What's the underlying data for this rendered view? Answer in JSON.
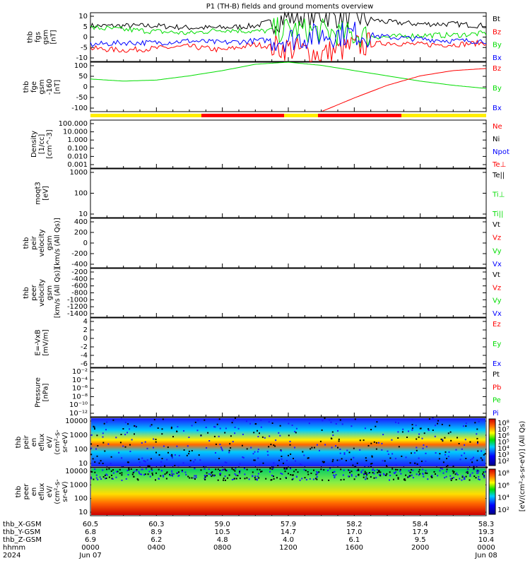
{
  "title": "P1 (TH-B) fields and ground moments overview",
  "colors": {
    "black": "#000000",
    "red": "#ff0000",
    "green": "#00dd00",
    "blue": "#0000ff",
    "yellow": "#ffee00"
  },
  "chart_data": [
    {
      "type": "line",
      "panel": "fgs-gsm",
      "ylabel": [
        "thb",
        "fgs",
        "gsm",
        "[nT]"
      ],
      "ylim": [
        -12,
        14
      ],
      "yticks": [
        "10",
        "5",
        "0",
        "-5",
        "-10"
      ],
      "legend": [
        "Bt",
        "Bz",
        "By",
        "Bx"
      ],
      "series": [
        {
          "name": "Bt",
          "values": [
            7,
            7,
            7,
            6,
            6,
            7,
            12,
            13,
            12,
            9,
            8,
            8,
            7
          ]
        },
        {
          "name": "Bz",
          "values": [
            -5,
            -6,
            -5,
            -4,
            -6,
            -3,
            -5,
            -8,
            -4,
            -2,
            -3,
            -3,
            -2
          ]
        },
        {
          "name": "By",
          "values": [
            6,
            5,
            4,
            3,
            5,
            4,
            5,
            4,
            2,
            1,
            2,
            2,
            3
          ]
        },
        {
          "name": "Bx",
          "values": [
            -3,
            -2,
            -2,
            -1,
            -2,
            -1,
            0,
            2,
            3,
            1,
            0,
            -1,
            -1
          ]
        }
      ]
    },
    {
      "type": "line",
      "panel": "fge-gsm-160",
      "ylabel": [
        "thb",
        "fge",
        "gsm",
        "-160",
        "[nT]"
      ],
      "ylim": [
        -125,
        110
      ],
      "yticks": [
        "100",
        "50",
        "0",
        "-50",
        "-100"
      ],
      "legend": [
        "Bz",
        "By",
        "Bx"
      ],
      "series": [
        {
          "name": "By",
          "values": [
            30,
            20,
            25,
            45,
            70,
            100,
            110,
            95,
            70,
            45,
            20,
            0,
            -15
          ]
        },
        {
          "name": "Bz",
          "values": [
            null,
            null,
            null,
            null,
            null,
            null,
            null,
            -125,
            -60,
            0,
            45,
            70,
            80
          ]
        }
      ]
    },
    {
      "type": "line",
      "panel": "density",
      "ylabel": [
        "Density",
        "[1/cc]",
        "[cm^-3]"
      ],
      "yticks": [
        "100.000",
        "10.000",
        "1.000",
        "0.100",
        "0.010",
        "0.001"
      ],
      "legend": [
        "Ne",
        "Ni",
        "Npot",
        "Te⊥"
      ]
    },
    {
      "type": "line",
      "panel": "temperature",
      "ylabel": [
        "moqt3",
        "[eV]"
      ],
      "yticks": [
        "1000",
        "100",
        "10"
      ],
      "legend": [
        "Te||",
        "Ti⊥",
        "Ti||"
      ]
    },
    {
      "type": "line",
      "panel": "peir-velocity",
      "ylabel": [
        "thb",
        "peir",
        "velocity",
        "gsm",
        "[km/s (All Qs)]"
      ],
      "ylim": [
        -460,
        460
      ],
      "yticks": [
        "400",
        "200",
        "0",
        "-200",
        "-400"
      ],
      "legend": [
        "Vt",
        "Vz",
        "Vy",
        "Vx"
      ]
    },
    {
      "type": "line",
      "panel": "peer-velocity",
      "ylabel": [
        "thb",
        "peer",
        "velocity",
        "gsm",
        "[km/s (All Qs)]"
      ],
      "ylim": [
        -1400,
        0
      ],
      "yticks": [
        "-200",
        "-400",
        "-600",
        "-800",
        "-1000",
        "-1200",
        "-1400"
      ],
      "legend": [
        "Vt",
        "Vz",
        "Vy",
        "Vx"
      ]
    },
    {
      "type": "line",
      "panel": "efield",
      "ylabel": [
        "E=-VxB",
        "[mV/m]"
      ],
      "ylim": [
        -6.5,
        5
      ],
      "yticks": [
        "4",
        "2",
        "0",
        "-2",
        "-4",
        "-6"
      ],
      "legend": [
        "Ez",
        "Ey",
        "Ex"
      ]
    },
    {
      "type": "line",
      "panel": "pressure",
      "ylabel": [
        "Pressure",
        "[nPa]"
      ],
      "yticks": [
        "10⁻²",
        "10⁻⁴",
        "10⁻⁶",
        "10⁻⁸",
        "10⁻¹⁰",
        "10⁻¹²"
      ],
      "legend": [
        "Pt",
        "Pb",
        "Pe",
        "Pi"
      ]
    },
    {
      "type": "heatmap",
      "panel": "peir-en-eflux",
      "ylabel": [
        "thb",
        "peir",
        "en",
        "eflux",
        "eV/",
        "(cm²-s-",
        "sr-eV)"
      ],
      "yticks": [
        "10000",
        "1000",
        "100",
        "10"
      ],
      "colorbar_ticks": [
        "10⁸",
        "10⁷",
        "10⁶",
        "10⁵",
        "10⁴",
        "10³",
        "10²"
      ]
    },
    {
      "type": "heatmap",
      "panel": "peer-en-eflux",
      "ylabel": [
        "thb",
        "peer",
        "en",
        "eflux",
        "eV/",
        "(cm²-s-",
        "sr-eV)"
      ],
      "yticks": [
        "10000",
        "1000",
        "100",
        "10"
      ],
      "colorbar_ticks": [
        "10⁸",
        "10⁶",
        "10⁴",
        "10²"
      ]
    }
  ],
  "colorbar_label": "[eV/(cm²-s-sr-eV)] (All Qs)",
  "xaxis": {
    "row_labels": [
      "thb_X-GSM",
      "thb_Y-GSM",
      "thb_Z-GSM",
      "hhmm",
      "2024"
    ],
    "x_gsm": [
      "60.5",
      "60.3",
      "59.0",
      "57.9",
      "58.2",
      "58.4",
      "58.3"
    ],
    "y_gsm": [
      "6.8",
      "8.9",
      "10.5",
      "14.7",
      "17.0",
      "17.9",
      "19.3"
    ],
    "z_gsm": [
      "6.9",
      "6.2",
      "4.8",
      "4.0",
      "6.1",
      "9.5",
      "10.4"
    ],
    "hhmm": [
      "0000",
      "0400",
      "0800",
      "1200",
      "1600",
      "2000",
      "0000"
    ],
    "dates": [
      "Jun 07",
      "Jun 08"
    ]
  }
}
